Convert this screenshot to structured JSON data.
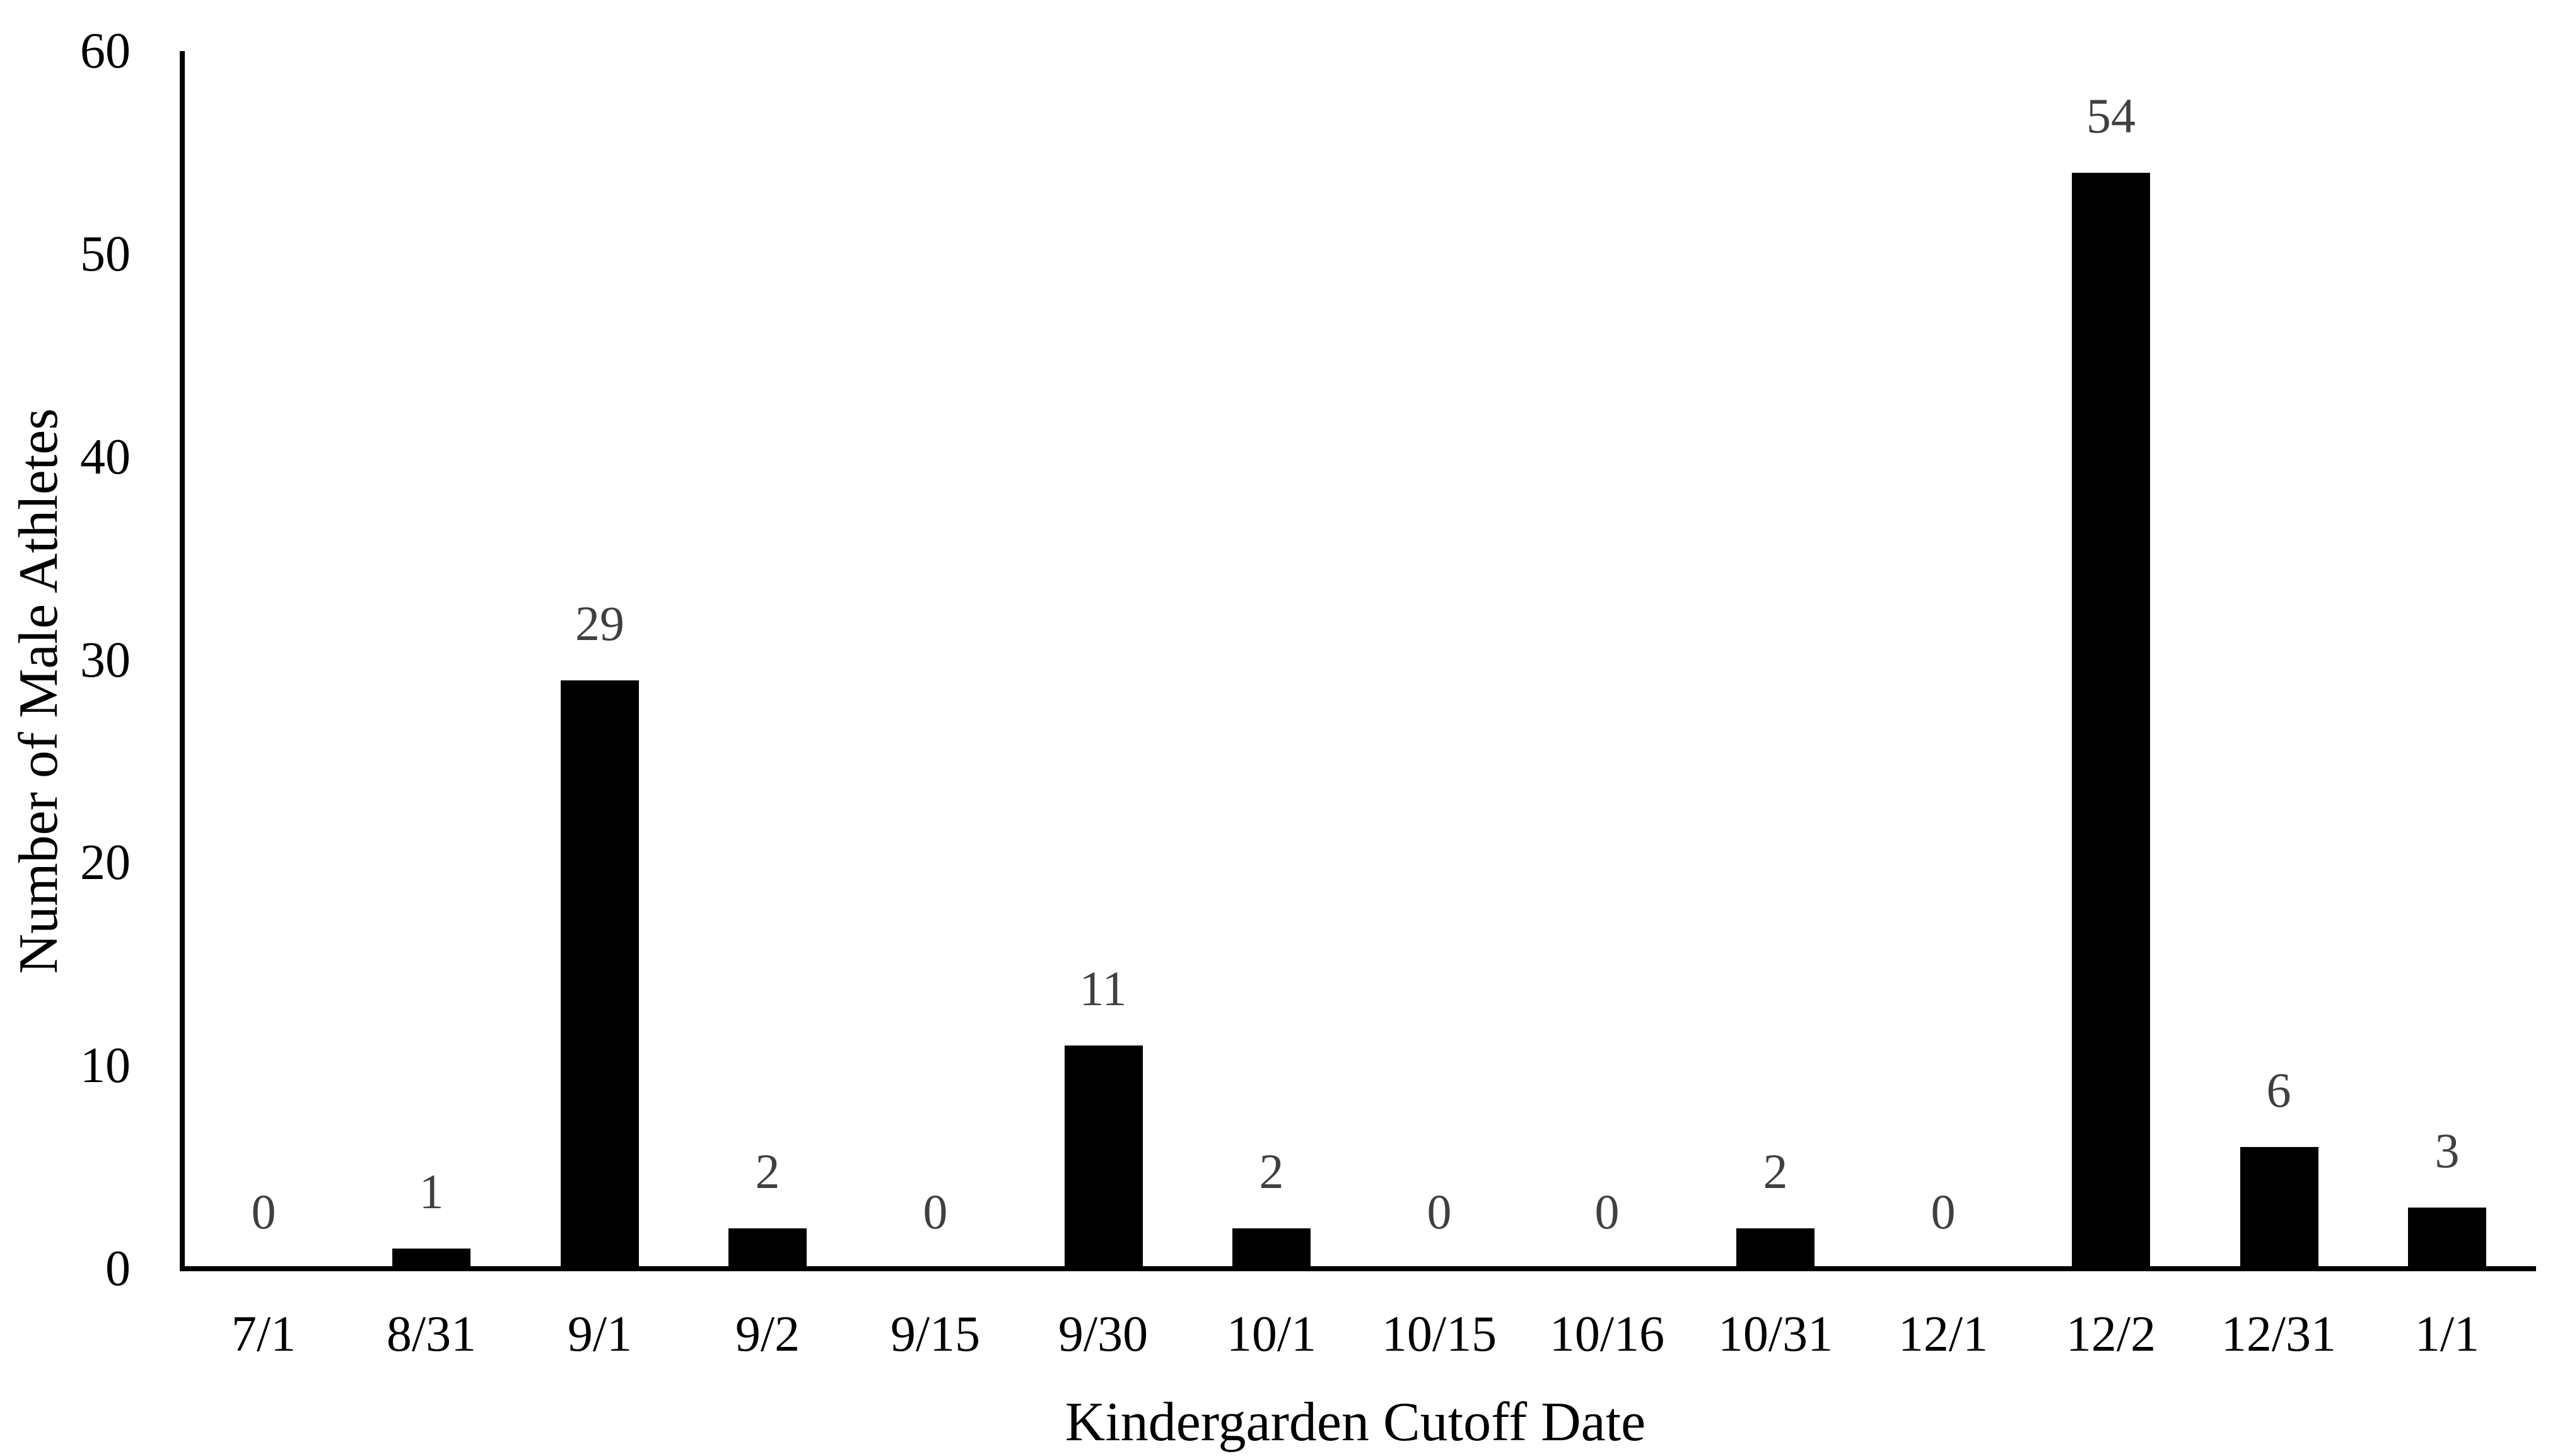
{
  "chart_data": {
    "type": "bar",
    "title": "",
    "categories": [
      "7/1",
      "8/31",
      "9/1",
      "9/2",
      "9/15",
      "9/30",
      "10/1",
      "10/15",
      "10/16",
      "10/31",
      "12/1",
      "12/2",
      "12/31",
      "1/1"
    ],
    "values": [
      0,
      1,
      29,
      2,
      0,
      11,
      2,
      0,
      0,
      2,
      0,
      54,
      6,
      3
    ],
    "data_labels_shown": true,
    "xlabel": "Kindergarden Cutoff Date",
    "ylabel": "Number of Male Athletes",
    "ylim": [
      0,
      60
    ],
    "yticks": [
      0,
      10,
      20,
      30,
      40,
      50,
      60
    ],
    "grid": false,
    "legend": "none"
  },
  "colors": {
    "background": "#ffffff",
    "bar": "#000000",
    "axis": "#000000",
    "tick_label": "#000000",
    "data_label": "#404040"
  }
}
